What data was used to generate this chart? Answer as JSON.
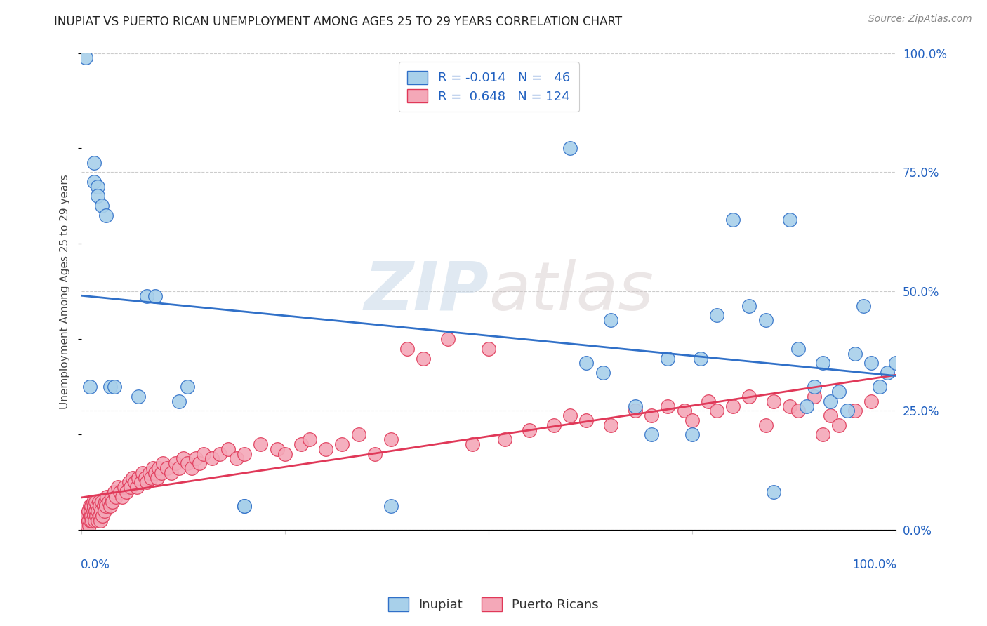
{
  "title": "INUPIAT VS PUERTO RICAN UNEMPLOYMENT AMONG AGES 25 TO 29 YEARS CORRELATION CHART",
  "source": "Source: ZipAtlas.com",
  "ylabel": "Unemployment Among Ages 25 to 29 years",
  "ytick_labels": [
    "0.0%",
    "25.0%",
    "50.0%",
    "75.0%",
    "100.0%"
  ],
  "ytick_values": [
    0.0,
    0.25,
    0.5,
    0.75,
    1.0
  ],
  "xlim": [
    0.0,
    1.0
  ],
  "ylim": [
    0.0,
    1.0
  ],
  "inupiat_R": -0.014,
  "inupiat_N": 46,
  "puertoRican_R": 0.648,
  "puertoRican_N": 124,
  "inupiat_color": "#a8d0ea",
  "puertoRican_color": "#f4a8b8",
  "inupiat_line_color": "#3070c8",
  "puertoRican_line_color": "#e03858",
  "legend_label_inupiat": "Inupiat",
  "legend_label_pr": "Puerto Ricans",
  "watermark_zip": "ZIP",
  "watermark_atlas": "atlas",
  "background_color": "#ffffff",
  "grid_color": "#cccccc",
  "inupiat_x": [
    0.005,
    0.01,
    0.015,
    0.015,
    0.02,
    0.02,
    0.025,
    0.03,
    0.035,
    0.04,
    0.07,
    0.08,
    0.09,
    0.12,
    0.13,
    0.2,
    0.2,
    0.38,
    0.6,
    0.62,
    0.64,
    0.65,
    0.68,
    0.7,
    0.72,
    0.75,
    0.76,
    0.78,
    0.8,
    0.82,
    0.84,
    0.85,
    0.87,
    0.88,
    0.89,
    0.9,
    0.91,
    0.92,
    0.93,
    0.94,
    0.95,
    0.96,
    0.97,
    0.98,
    0.99,
    1.0
  ],
  "inupiat_y": [
    0.99,
    0.3,
    0.77,
    0.73,
    0.72,
    0.7,
    0.68,
    0.66,
    0.3,
    0.3,
    0.28,
    0.49,
    0.49,
    0.27,
    0.3,
    0.05,
    0.05,
    0.05,
    0.8,
    0.35,
    0.33,
    0.44,
    0.26,
    0.2,
    0.36,
    0.2,
    0.36,
    0.45,
    0.65,
    0.47,
    0.44,
    0.08,
    0.65,
    0.38,
    0.26,
    0.3,
    0.35,
    0.27,
    0.29,
    0.25,
    0.37,
    0.47,
    0.35,
    0.3,
    0.33,
    0.35
  ],
  "pr_x": [
    0.002,
    0.003,
    0.004,
    0.005,
    0.006,
    0.007,
    0.007,
    0.008,
    0.008,
    0.009,
    0.01,
    0.01,
    0.011,
    0.011,
    0.012,
    0.012,
    0.013,
    0.014,
    0.014,
    0.015,
    0.015,
    0.016,
    0.017,
    0.017,
    0.018,
    0.019,
    0.02,
    0.02,
    0.021,
    0.022,
    0.022,
    0.023,
    0.024,
    0.025,
    0.026,
    0.027,
    0.028,
    0.029,
    0.03,
    0.031,
    0.033,
    0.035,
    0.037,
    0.038,
    0.04,
    0.042,
    0.045,
    0.047,
    0.05,
    0.052,
    0.055,
    0.058,
    0.06,
    0.063,
    0.065,
    0.068,
    0.07,
    0.073,
    0.075,
    0.078,
    0.08,
    0.083,
    0.085,
    0.088,
    0.09,
    0.093,
    0.095,
    0.098,
    0.1,
    0.105,
    0.11,
    0.115,
    0.12,
    0.125,
    0.13,
    0.135,
    0.14,
    0.145,
    0.15,
    0.16,
    0.17,
    0.18,
    0.19,
    0.2,
    0.22,
    0.24,
    0.25,
    0.27,
    0.28,
    0.3,
    0.32,
    0.34,
    0.36,
    0.38,
    0.4,
    0.42,
    0.45,
    0.48,
    0.5,
    0.52,
    0.55,
    0.58,
    0.6,
    0.62,
    0.65,
    0.68,
    0.7,
    0.72,
    0.74,
    0.75,
    0.77,
    0.78,
    0.8,
    0.82,
    0.84,
    0.85,
    0.87,
    0.88,
    0.9,
    0.91,
    0.92,
    0.93,
    0.95,
    0.97
  ],
  "pr_y": [
    0.01,
    0.02,
    0.01,
    0.03,
    0.02,
    0.01,
    0.03,
    0.02,
    0.04,
    0.01,
    0.03,
    0.05,
    0.02,
    0.04,
    0.03,
    0.05,
    0.02,
    0.04,
    0.06,
    0.03,
    0.05,
    0.02,
    0.04,
    0.06,
    0.03,
    0.05,
    0.02,
    0.04,
    0.06,
    0.03,
    0.05,
    0.02,
    0.04,
    0.06,
    0.03,
    0.05,
    0.04,
    0.06,
    0.05,
    0.07,
    0.06,
    0.05,
    0.07,
    0.06,
    0.08,
    0.07,
    0.09,
    0.08,
    0.07,
    0.09,
    0.08,
    0.1,
    0.09,
    0.11,
    0.1,
    0.09,
    0.11,
    0.1,
    0.12,
    0.11,
    0.1,
    0.12,
    0.11,
    0.13,
    0.12,
    0.11,
    0.13,
    0.12,
    0.14,
    0.13,
    0.12,
    0.14,
    0.13,
    0.15,
    0.14,
    0.13,
    0.15,
    0.14,
    0.16,
    0.15,
    0.16,
    0.17,
    0.15,
    0.16,
    0.18,
    0.17,
    0.16,
    0.18,
    0.19,
    0.17,
    0.18,
    0.2,
    0.16,
    0.19,
    0.38,
    0.36,
    0.4,
    0.18,
    0.38,
    0.19,
    0.21,
    0.22,
    0.24,
    0.23,
    0.22,
    0.25,
    0.24,
    0.26,
    0.25,
    0.23,
    0.27,
    0.25,
    0.26,
    0.28,
    0.22,
    0.27,
    0.26,
    0.25,
    0.28,
    0.2,
    0.24,
    0.22,
    0.25,
    0.27
  ]
}
